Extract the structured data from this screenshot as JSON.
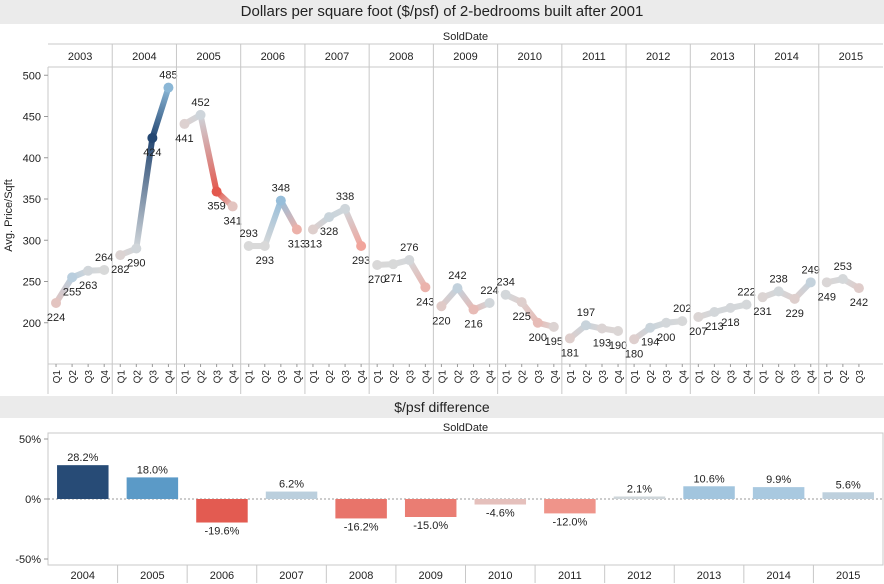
{
  "top_title": "Dollars per square foot ($/psf) of 2-bedrooms built after 2001",
  "bottom_title": "$/psf difference",
  "colors": {
    "blue_dark": "#1f3c66",
    "blue": "#4a90c2",
    "blue_light": "#a9c9e0",
    "grey": "#d9d9d9",
    "red_light": "#f2a49a",
    "red": "#e3594f",
    "red_dark": "#c81d1f"
  },
  "chart_data": [
    {
      "type": "line",
      "column_header": "SoldDate",
      "ylabel": "Avg. Price/Sqft",
      "ylim": [
        150,
        510
      ],
      "yticks": [
        200,
        250,
        300,
        350,
        400,
        450,
        500
      ],
      "panels": [
        {
          "year": "2003",
          "quarters": [
            "Q1",
            "Q2",
            "Q3",
            "Q4"
          ],
          "values": [
            224,
            255,
            263,
            264
          ]
        },
        {
          "year": "2004",
          "quarters": [
            "Q1",
            "Q2",
            "Q3",
            "Q4"
          ],
          "values": [
            282,
            290,
            424,
            485
          ]
        },
        {
          "year": "2005",
          "quarters": [
            "Q1",
            "Q2",
            "Q3",
            "Q4"
          ],
          "values": [
            441,
            452,
            359,
            341
          ]
        },
        {
          "year": "2006",
          "quarters": [
            "Q1",
            "Q2",
            "Q3",
            "Q4"
          ],
          "values": [
            293,
            293,
            348,
            313
          ]
        },
        {
          "year": "2007",
          "quarters": [
            "Q1",
            "Q2",
            "Q3",
            "Q4"
          ],
          "values": [
            313,
            328,
            338,
            293
          ]
        },
        {
          "year": "2008",
          "quarters": [
            "Q1",
            "Q2",
            "Q3",
            "Q4"
          ],
          "values": [
            270,
            271,
            276,
            243
          ]
        },
        {
          "year": "2009",
          "quarters": [
            "Q1",
            "Q2",
            "Q3",
            "Q4"
          ],
          "values": [
            220,
            242,
            216,
            224
          ]
        },
        {
          "year": "2010",
          "quarters": [
            "Q1",
            "Q2",
            "Q3",
            "Q4"
          ],
          "values": [
            234,
            225,
            200,
            195
          ]
        },
        {
          "year": "2011",
          "quarters": [
            "Q1",
            "Q2",
            "Q3",
            "Q4"
          ],
          "values": [
            181,
            197,
            193,
            190
          ]
        },
        {
          "year": "2012",
          "quarters": [
            "Q1",
            "Q2",
            "Q3",
            "Q4"
          ],
          "values": [
            180,
            194,
            200,
            202
          ]
        },
        {
          "year": "2013",
          "quarters": [
            "Q1",
            "Q2",
            "Q3",
            "Q4"
          ],
          "values": [
            207,
            213,
            218,
            222
          ]
        },
        {
          "year": "2014",
          "quarters": [
            "Q1",
            "Q2",
            "Q3",
            "Q4"
          ],
          "values": [
            231,
            238,
            229,
            249
          ]
        },
        {
          "year": "2015",
          "quarters": [
            "Q1",
            "Q2",
            "Q3"
          ],
          "values": [
            249,
            253,
            242
          ]
        }
      ]
    },
    {
      "type": "bar",
      "column_header": "SoldDate",
      "ylim": [
        -55,
        55
      ],
      "yticks": [
        50,
        0,
        -50
      ],
      "ytick_labels": [
        "50%",
        "0%",
        "-50%"
      ],
      "categories": [
        "2004",
        "2005",
        "2006",
        "2007",
        "2008",
        "2009",
        "2010",
        "2011",
        "2012",
        "2013",
        "2014",
        "2015"
      ],
      "values": [
        28.2,
        18.0,
        -19.6,
        6.2,
        -16.2,
        -15.0,
        -4.6,
        -12.0,
        2.1,
        10.6,
        9.9,
        5.6
      ],
      "value_labels": [
        "28.2%",
        "18.0%",
        "-19.6%",
        "6.2%",
        "-16.2%",
        "-15.0%",
        "-4.6%",
        "-12.0%",
        "2.1%",
        "10.6%",
        "9.9%",
        "5.6%"
      ]
    }
  ]
}
